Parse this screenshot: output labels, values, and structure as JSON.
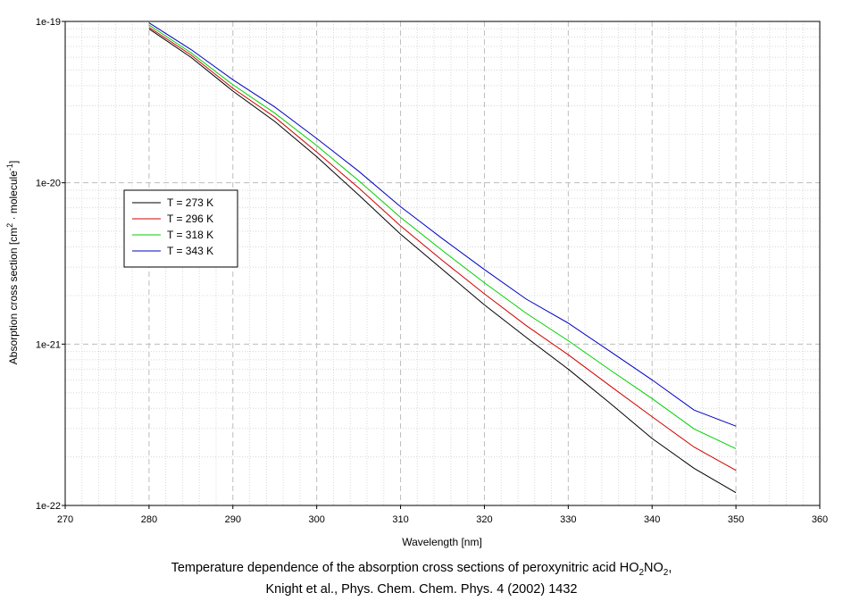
{
  "chart_data": {
    "type": "line",
    "xlabel": "Wavelength [nm]",
    "ylabel": {
      "base": "Absorption cross section [cm",
      "sup1": "2",
      "mid": " · molecule",
      "sup2": "-1",
      "end": "]"
    },
    "xlim": [
      270,
      360
    ],
    "ylim": [
      1e-22,
      1e-19
    ],
    "yscale": "log",
    "x_ticks": [
      270,
      280,
      290,
      300,
      310,
      320,
      330,
      340,
      350,
      360
    ],
    "y_ticks": [
      {
        "value": 1e-19,
        "label": "1e-19"
      },
      {
        "value": 1e-20,
        "label": "1e-20"
      },
      {
        "value": 1e-21,
        "label": "1e-21"
      },
      {
        "value": 1e-22,
        "label": "1e-22"
      }
    ],
    "grid": true,
    "legend_position": "left-middle",
    "x": [
      280,
      285,
      290,
      295,
      300,
      305,
      310,
      315,
      320,
      325,
      330,
      335,
      340,
      345,
      350
    ],
    "series": [
      {
        "name": "T = 273 K",
        "color": "#000000",
        "values": [
          9e-20,
          6e-20,
          3.7e-20,
          2.4e-20,
          1.45e-20,
          8.4e-21,
          4.8e-21,
          2.9e-21,
          1.75e-21,
          1.1e-21,
          7e-22,
          4.3e-22,
          2.6e-22,
          1.7e-22,
          1.2e-22
        ]
      },
      {
        "name": "T = 296 K",
        "color": "#d00000",
        "values": [
          9.2e-20,
          6.2e-20,
          3.85e-20,
          2.55e-20,
          1.55e-20,
          9.3e-21,
          5.4e-21,
          3.3e-21,
          2.05e-21,
          1.3e-21,
          8.6e-22,
          5.5e-22,
          3.55e-22,
          2.3e-22,
          1.65e-22
        ]
      },
      {
        "name": "T = 318 K",
        "color": "#00d000",
        "values": [
          9.5e-20,
          6.4e-20,
          4.05e-20,
          2.7e-20,
          1.7e-20,
          1.03e-20,
          6.1e-21,
          3.8e-21,
          2.4e-21,
          1.55e-21,
          1.05e-21,
          6.9e-22,
          4.6e-22,
          2.98e-22,
          2.25e-22
        ]
      },
      {
        "name": "T = 343 K",
        "color": "#0000c0",
        "values": [
          9.8e-20,
          6.7e-20,
          4.35e-20,
          2.95e-20,
          1.88e-20,
          1.18e-20,
          7.1e-21,
          4.5e-21,
          2.9e-21,
          1.9e-21,
          1.35e-21,
          9e-22,
          6e-22,
          3.9e-22,
          3.1e-22
        ]
      }
    ]
  },
  "caption": {
    "line1": {
      "text": "Temperature dependence of the absorption cross sections of peroxynitric acid HO",
      "sub1": "2",
      "mid": "NO",
      "sub2": "2",
      "end": ","
    },
    "line2": "Knight et al., Phys. Chem. Chem. Phys. 4 (2002) 1432"
  }
}
